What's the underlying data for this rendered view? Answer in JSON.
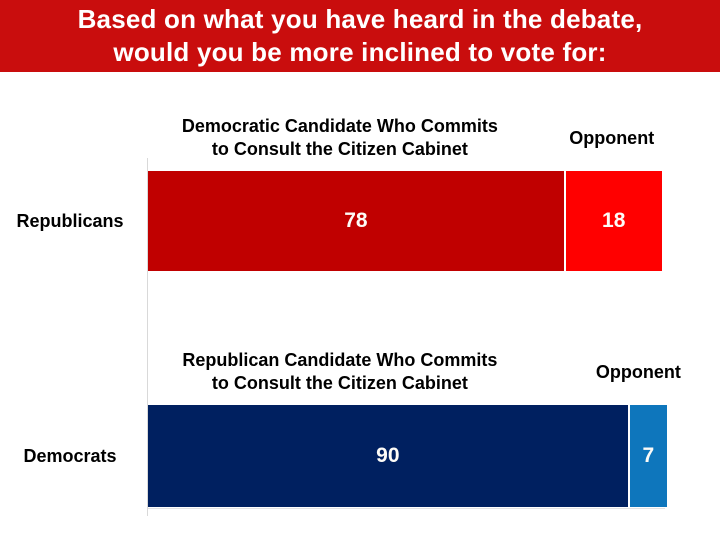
{
  "title": {
    "full": "Based on what you have heard in the debate, would you be more inclined to vote for:",
    "line1": "Based on what you have heard in the debate,",
    "line2": "would you be more inclined to vote for:"
  },
  "colors": {
    "banner_red": "#C90D0D",
    "dark_red": "#C00000",
    "bright_red": "#FF0000",
    "navy": "#002060",
    "light_blue": "#0E76BC"
  },
  "charts": [
    {
      "group_label": "Republicans",
      "header": {
        "line1": "Democratic Candidate Who Commits",
        "line2": "to Consult the Citizen Cabinet",
        "opponent": "Opponent"
      },
      "segments": [
        {
          "label": "78",
          "value": 78,
          "color": "#C00000"
        },
        {
          "label": "18",
          "value": 18,
          "color": "#FF0000"
        }
      ]
    },
    {
      "group_label": "Democrats",
      "header": {
        "line1": "Republican Candidate Who Commits",
        "line2": "to Consult the Citizen Cabinet",
        "opponent": "Opponent"
      },
      "segments": [
        {
          "label": "90",
          "value": 90,
          "color": "#002060"
        },
        {
          "label": "7",
          "value": 7,
          "color": "#0E76BC"
        }
      ]
    }
  ],
  "chart_data": [
    {
      "type": "bar",
      "orientation": "horizontal",
      "stacked": true,
      "title": "Based on what you have heard in the debate, would you be more inclined to vote for:",
      "categories": [
        "Republicans"
      ],
      "series": [
        {
          "name": "Democratic Candidate Who Commits to Consult the Citizen Cabinet",
          "values": [
            78
          ],
          "color": "#C00000"
        },
        {
          "name": "Opponent",
          "values": [
            18
          ],
          "color": "#FF0000"
        }
      ],
      "xlim": [
        0,
        100
      ],
      "grid": false,
      "data_labels": true,
      "legend_position": "top"
    },
    {
      "type": "bar",
      "orientation": "horizontal",
      "stacked": true,
      "title": "Based on what you have heard in the debate, would you be more inclined to vote for:",
      "categories": [
        "Democrats"
      ],
      "series": [
        {
          "name": "Republican Candidate Who Commits to Consult the Citizen Cabinet",
          "values": [
            90
          ],
          "color": "#002060"
        },
        {
          "name": "Opponent",
          "values": [
            7
          ],
          "color": "#0E76BC"
        }
      ],
      "xlim": [
        0,
        100
      ],
      "grid": false,
      "data_labels": true,
      "legend_position": "top"
    }
  ]
}
